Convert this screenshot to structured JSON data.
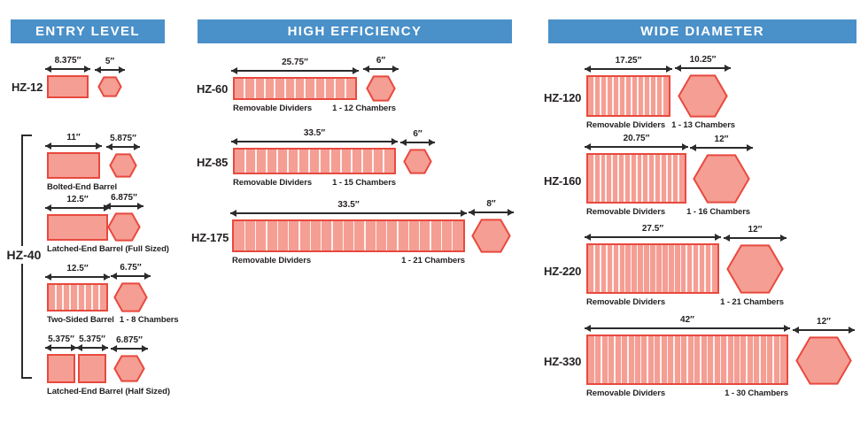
{
  "colors": {
    "header_bg": "#4a90c9",
    "header_text": "#ffffff",
    "shape_fill": "#f59e94",
    "shape_border": "#e8493e",
    "divider_line": "rgba(255,255,255,0.85)",
    "text": "#231f20"
  },
  "sections": [
    {
      "header": "ENTRY LEVEL",
      "products": [
        {
          "label": "HZ-12",
          "variants": [
            {
              "barrels": [
                {
                  "dim": "8.375″"
                }
              ],
              "hex": {
                "dim": "5″"
              }
            }
          ]
        },
        {
          "label": "HZ-40",
          "variants": [
            {
              "barrels": [
                {
                  "dim": "11″"
                }
              ],
              "hex": {
                "dim": "5.875″"
              },
              "caption_left": "Bolted-End Barrel"
            },
            {
              "barrels": [
                {
                  "dim": "12.5″"
                }
              ],
              "hex": {
                "dim": "6.875″"
              },
              "caption_left": "Latched-End Barrel (Full Sized)"
            },
            {
              "barrels": [
                {
                  "dim": "12.5″"
                }
              ],
              "hex": {
                "dim": "6.75″"
              },
              "caption_left": "Two-Sided Barrel",
              "caption_right": "1 - 8 Chambers",
              "chambers": 8
            },
            {
              "barrels": [
                {
                  "dim": "5.375″"
                },
                {
                  "dim": "5.375″"
                }
              ],
              "hex": {
                "dim": "6.875″"
              },
              "caption_left": "Latched-End Barrel (Half Sized)"
            }
          ]
        }
      ]
    },
    {
      "header": "HIGH EFFICIENCY",
      "products": [
        {
          "label": "HZ-60",
          "variants": [
            {
              "barrels": [
                {
                  "dim": "25.75″"
                }
              ],
              "hex": {
                "dim": "6″"
              },
              "caption_left": "Removable Dividers",
              "caption_right": "1 - 12 Chambers",
              "chambers": 12
            }
          ]
        },
        {
          "label": "HZ-85",
          "variants": [
            {
              "barrels": [
                {
                  "dim": "33.5″"
                }
              ],
              "hex": {
                "dim": "6″"
              },
              "caption_left": "Removable Dividers",
              "caption_right": "1 - 15 Chambers",
              "chambers": 15
            }
          ]
        },
        {
          "label": "HZ-175",
          "variants": [
            {
              "barrels": [
                {
                  "dim": "33.5″"
                }
              ],
              "hex": {
                "dim": "8″"
              },
              "caption_left": "Removable Dividers",
              "caption_right": "1 - 21 Chambers",
              "chambers": 21
            }
          ]
        }
      ]
    },
    {
      "header": "WIDE DIAMETER",
      "products": [
        {
          "label": "HZ-120",
          "variants": [
            {
              "barrels": [
                {
                  "dim": "17.25″"
                }
              ],
              "hex": {
                "dim": "10.25″"
              },
              "caption_left": "Removable Dividers",
              "caption_right": "1 - 13 Chambers",
              "chambers": 13
            }
          ]
        },
        {
          "label": "HZ-160",
          "variants": [
            {
              "barrels": [
                {
                  "dim": "20.75″"
                }
              ],
              "hex": {
                "dim": "12″"
              },
              "caption_left": "Removable Dividers",
              "caption_right": "1 - 16 Chambers",
              "chambers": 16
            }
          ]
        },
        {
          "label": "HZ-220",
          "variants": [
            {
              "barrels": [
                {
                  "dim": "27.5″"
                }
              ],
              "hex": {
                "dim": "12″"
              },
              "caption_left": "Removable Dividers",
              "caption_right": "1 - 21 Chambers",
              "chambers": 21
            }
          ]
        },
        {
          "label": "HZ-330",
          "variants": [
            {
              "barrels": [
                {
                  "dim": "42″"
                }
              ],
              "hex": {
                "dim": "12″"
              },
              "caption_left": "Removable Dividers",
              "caption_right": "1 - 30 Chambers",
              "chambers": 30
            }
          ]
        }
      ]
    }
  ]
}
